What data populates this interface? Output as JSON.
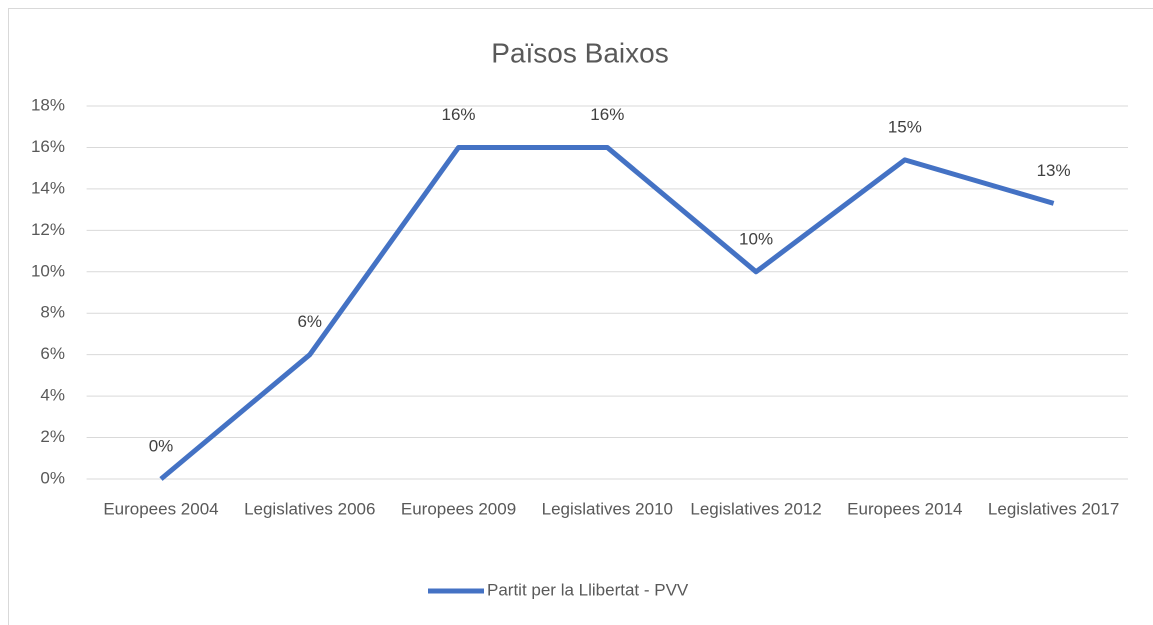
{
  "chart_data": {
    "type": "line",
    "title": "Països Baixos",
    "categories": [
      "Europees 2004",
      "Legislatives 2006",
      "Europees 2009",
      "Legislatives 2010",
      "Legislatives 2012",
      "Europees 2014",
      "Legislatives 2017"
    ],
    "series": [
      {
        "name": "Partit per la Llibertat - PVV",
        "color": "#4472c4",
        "values": [
          0,
          6,
          16,
          16,
          10,
          15.4,
          13.3
        ],
        "value_labels": [
          "0%",
          "6%",
          "16%",
          "16%",
          "10%",
          "15%",
          "13%"
        ]
      }
    ],
    "ylim": [
      0,
      18
    ],
    "yticks": [
      {
        "value": 0,
        "label": "0%"
      },
      {
        "value": 2,
        "label": "2%"
      },
      {
        "value": 4,
        "label": "4%"
      },
      {
        "value": 6,
        "label": "6%"
      },
      {
        "value": 8,
        "label": "8%"
      },
      {
        "value": 10,
        "label": "10%"
      },
      {
        "value": 12,
        "label": "12%"
      },
      {
        "value": 14,
        "label": "14%"
      },
      {
        "value": 16,
        "label": "16%"
      },
      {
        "value": 18,
        "label": "18%"
      }
    ],
    "grid": true,
    "legend": "bottom"
  }
}
